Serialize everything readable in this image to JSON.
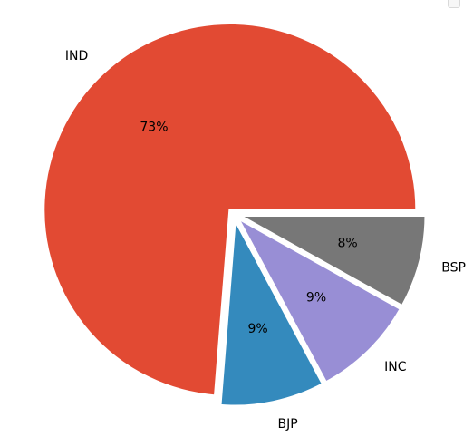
{
  "chart_data": {
    "type": "pie",
    "title": "",
    "slices": [
      {
        "label": "IND",
        "value": 73,
        "pct_label": "73%",
        "color": "#E24A33"
      },
      {
        "label": "BJP",
        "value": 9,
        "pct_label": "9%",
        "color": "#348ABD"
      },
      {
        "label": "INC",
        "value": 9,
        "pct_label": "9%",
        "color": "#988ED5"
      },
      {
        "label": "BSP",
        "value": 8,
        "pct_label": "8%",
        "color": "#777777"
      }
    ],
    "exploded": true,
    "edge_color": "#ffffff"
  }
}
